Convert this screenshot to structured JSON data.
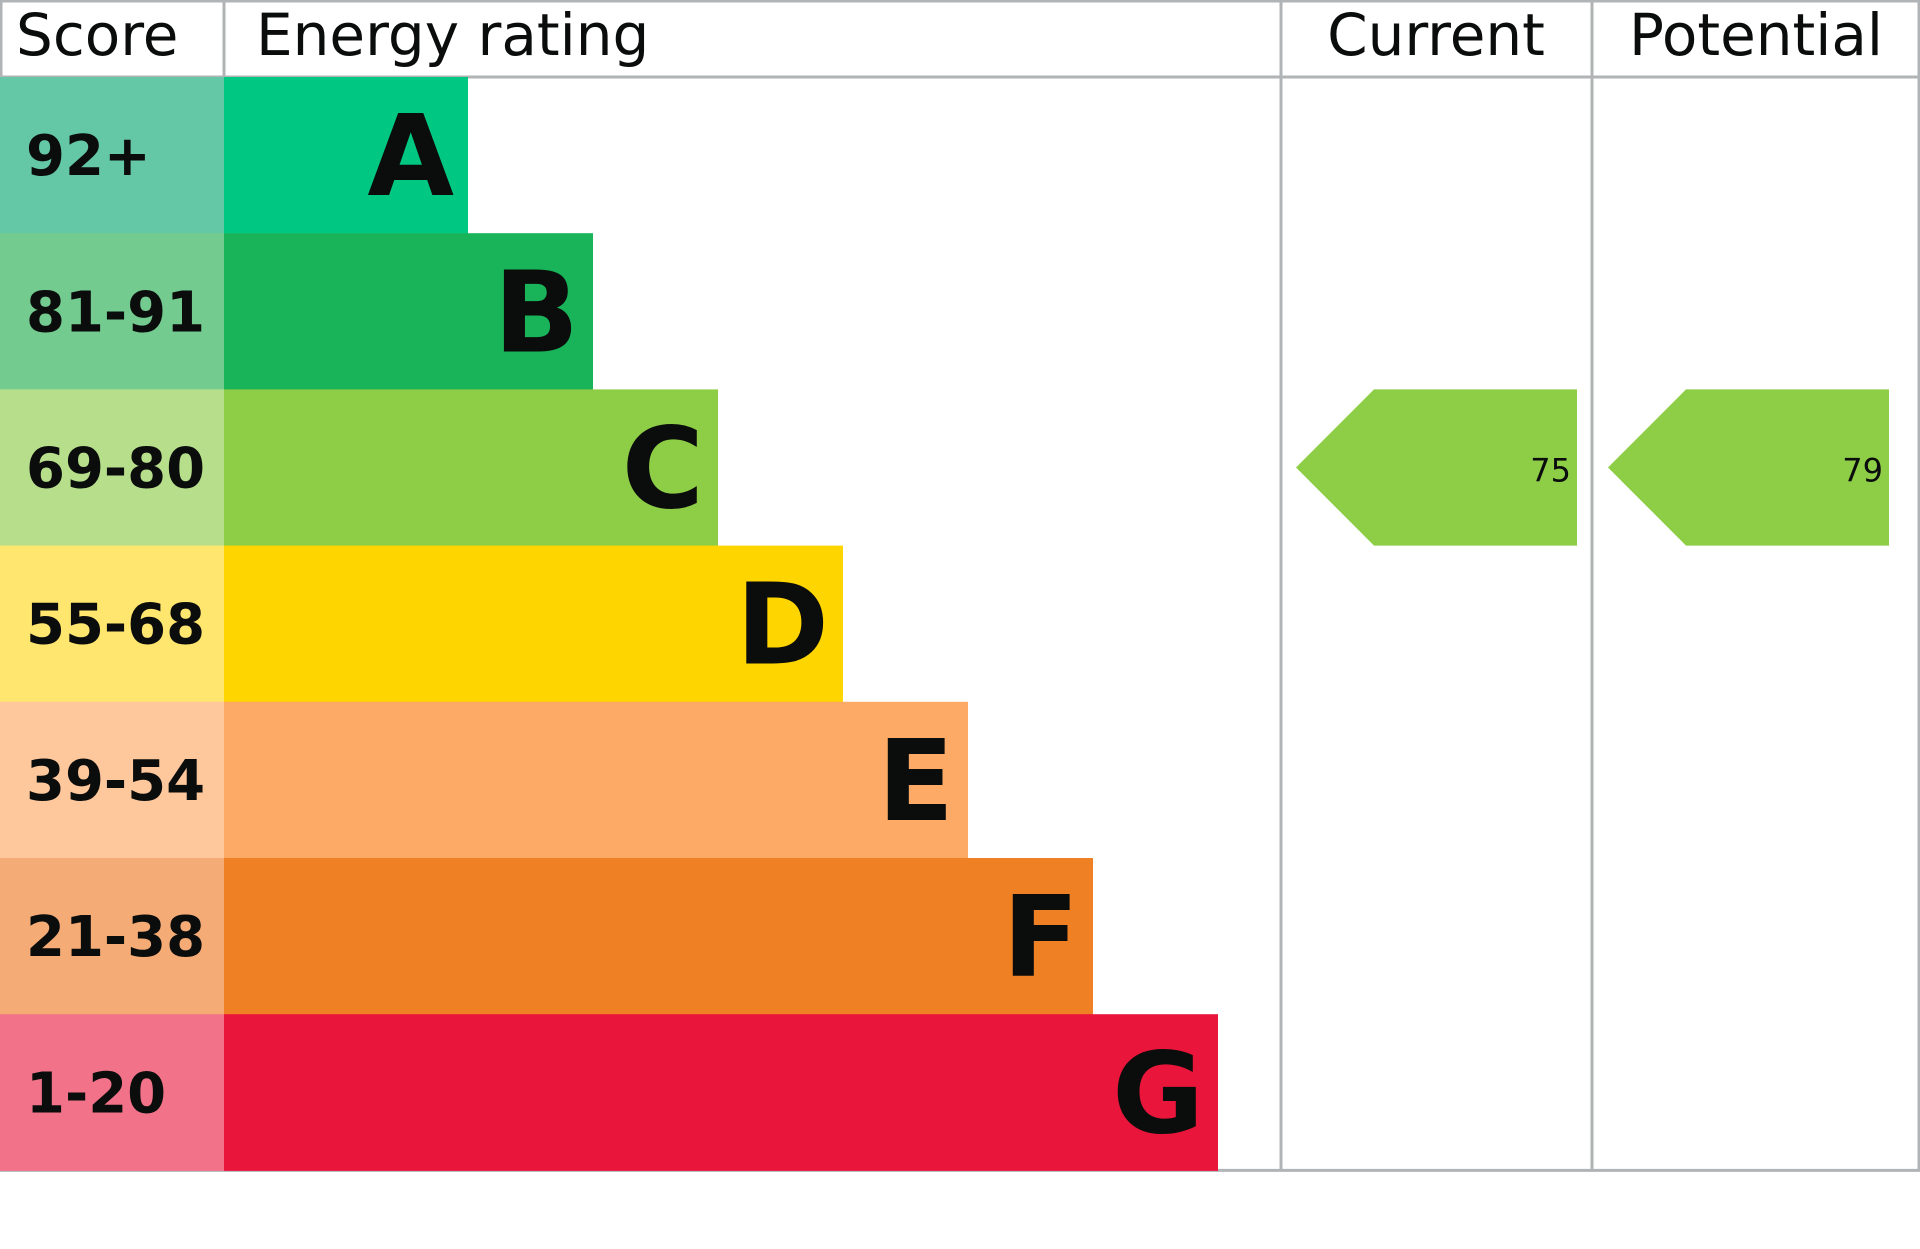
{
  "headers": {
    "score": "Score",
    "rating": "Energy rating",
    "current": "Current",
    "potential": "Potential"
  },
  "chart_data": {
    "type": "bar",
    "bands": [
      {
        "letter": "A",
        "range": "92+",
        "color": "#00c781",
        "score_bg": "#64c7a5"
      },
      {
        "letter": "B",
        "range": "81-91",
        "color": "#19b459",
        "score_bg": "#73cb8f"
      },
      {
        "letter": "C",
        "range": "69-80",
        "color": "#8dce46",
        "score_bg": "#b7df8b"
      },
      {
        "letter": "D",
        "range": "55-68",
        "color": "#ffd500",
        "score_bg": "#ffe66e"
      },
      {
        "letter": "E",
        "range": "39-54",
        "color": "#fcaa65",
        "score_bg": "#fec89c"
      },
      {
        "letter": "F",
        "range": "21-38",
        "color": "#ef8023",
        "score_bg": "#f4ab75"
      },
      {
        "letter": "G",
        "range": "1-20",
        "color": "#e9153b",
        "score_bg": "#f27389"
      }
    ],
    "current": {
      "value": "75",
      "band": "C"
    },
    "potential": {
      "value": "79",
      "band": "C"
    },
    "grid_color": "#b1b4b6"
  }
}
